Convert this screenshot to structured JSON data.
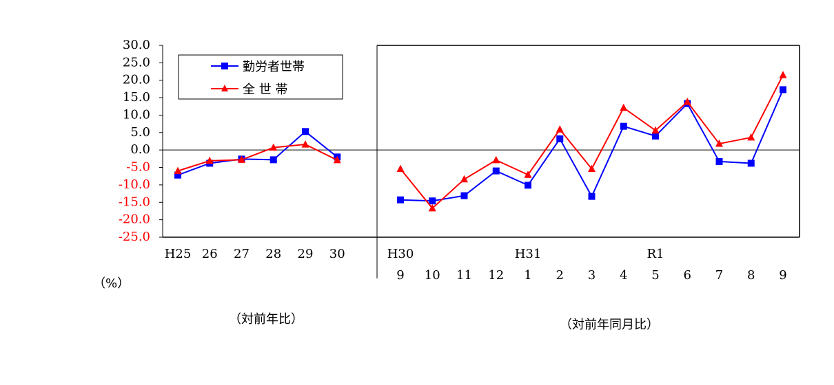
{
  "chart_data": {
    "type": "line",
    "ylim": [
      -25,
      30
    ],
    "yticks": [
      "30.0",
      "25.0",
      "20.0",
      "15.0",
      "10.0",
      "5.0",
      "0.0",
      "-5.0",
      "-10.0",
      "-15.0",
      "-20.0",
      "-25.0"
    ],
    "yunit": "（%）",
    "colors": {
      "series1": "#0000ff",
      "series2": "#ff0000",
      "neg_tick": "#ff0000",
      "pos_tick": "#000000"
    },
    "legend_position": "top-left",
    "annual": {
      "categories": [
        "H25",
        "26",
        "27",
        "28",
        "29",
        "30"
      ],
      "caption": "（対前年比）",
      "series": [
        {
          "name": "勤労者世帯",
          "marker": "square",
          "values": [
            -7.2,
            -3.8,
            -2.6,
            -2.8,
            5.3,
            -2.0
          ]
        },
        {
          "name": "全 世 帯",
          "marker": "triangle",
          "values": [
            -6.0,
            -3.1,
            -2.8,
            0.7,
            1.6,
            -2.9
          ]
        }
      ]
    },
    "monthly": {
      "categories": [
        "9",
        "10",
        "11",
        "12",
        "1",
        "2",
        "3",
        "4",
        "5",
        "6",
        "7",
        "8",
        "9"
      ],
      "era_labels": [
        {
          "label": "H30",
          "index": 0
        },
        {
          "label": "H31",
          "index": 4
        },
        {
          "label": "R1",
          "index": 8
        }
      ],
      "caption": "（対前年同月比）",
      "series": [
        {
          "name": "勤労者世帯",
          "marker": "square",
          "values": [
            -14.3,
            -14.6,
            -13.1,
            -6.0,
            -10.1,
            3.2,
            -13.3,
            6.8,
            4.0,
            13.3,
            -3.3,
            -3.8,
            17.3
          ]
        },
        {
          "name": "全 世 帯",
          "marker": "triangle",
          "values": [
            -5.4,
            -16.7,
            -8.4,
            -2.9,
            -7.1,
            5.9,
            -5.4,
            12.1,
            5.6,
            13.8,
            1.8,
            3.6,
            21.5
          ]
        }
      ]
    }
  }
}
